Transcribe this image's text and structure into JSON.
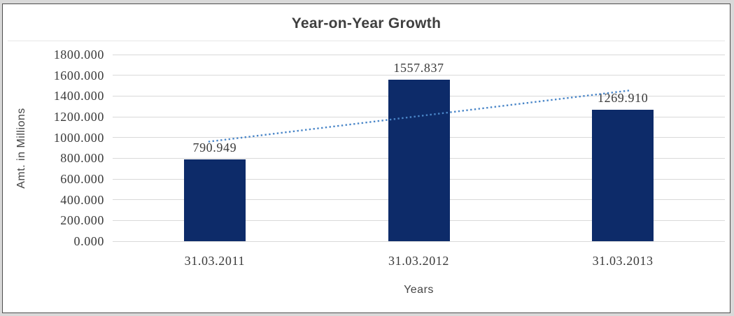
{
  "window": {
    "background_color": "#d9d9d9",
    "frame_background_color": "#ffffff",
    "frame_border_color": "#4d4d4d"
  },
  "chart_data": {
    "type": "bar",
    "title": "Year-on-Year Growth",
    "xlabel": "Years",
    "ylabel": "Amt. in Millions",
    "categories": [
      "31.03.2011",
      "31.03.2012",
      "31.03.2013"
    ],
    "values": [
      790.949,
      1557.837,
      1269.91
    ],
    "value_labels": [
      "790.949",
      "1557.837",
      "1269.910"
    ],
    "ylim": [
      0,
      1800
    ],
    "yticks": [
      0,
      200,
      400,
      600,
      800,
      1000,
      1200,
      1400,
      1600,
      1800
    ],
    "ytick_labels": [
      "0.000",
      "200.000",
      "400.000",
      "600.000",
      "800.000",
      "1000.000",
      "1200.000",
      "1400.000",
      "1600.000",
      "1800.000"
    ],
    "grid": "horizontal",
    "legend": "none",
    "bar_color": "#0d2b69",
    "grid_color": "#d9d9d9",
    "text_color": "#404040",
    "title_color": "#3f3f3f",
    "trendline": {
      "type": "linear",
      "style": "dotted",
      "color": "#4a86c8",
      "start_value": 966.8,
      "end_value": 1445.7
    }
  }
}
